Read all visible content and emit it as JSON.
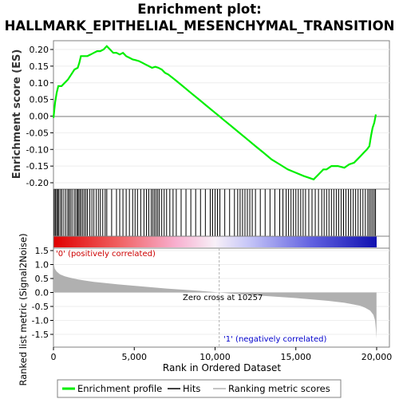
{
  "title_line1": "Enrichment plot:",
  "title_line2": "HALLMARK_EPITHELIAL_MESENCHYMAL_TRANSITION",
  "chart_data": [
    {
      "type": "line",
      "panel": "enrichment",
      "ylabel": "Enrichment score (ES)",
      "xlim": [
        0,
        20000
      ],
      "ylim": [
        -0.2,
        0.2
      ],
      "yticks": [
        "0.20",
        "0.15",
        "0.10",
        "0.05",
        "0.00",
        "-0.05",
        "-0.10",
        "-0.15",
        "-0.20"
      ],
      "ytick_values": [
        0.2,
        0.15,
        0.1,
        0.05,
        0.0,
        -0.05,
        -0.1,
        -0.15,
        -0.2
      ],
      "series": [
        {
          "name": "Enrichment profile",
          "color": "#00ee00",
          "x": [
            0,
            100,
            200,
            300,
            500,
            700,
            900,
            1100,
            1300,
            1500,
            1600,
            1700,
            1900,
            2100,
            2300,
            2500,
            2700,
            2900,
            3100,
            3300,
            3500,
            3700,
            3900,
            4100,
            4300,
            4500,
            4700,
            4900,
            5100,
            5300,
            5500,
            5700,
            5900,
            6100,
            6300,
            6500,
            6700,
            6900,
            7100,
            7500,
            8000,
            8500,
            9000,
            9500,
            10000,
            10257,
            10500,
            11000,
            11500,
            12000,
            12500,
            13000,
            13500,
            14000,
            14500,
            15000,
            15500,
            15800,
            16100,
            16400,
            16700,
            16900,
            17200,
            17600,
            18000,
            18300,
            18600,
            18800,
            19000,
            19200,
            19400,
            19550,
            19650,
            19750,
            19850,
            19950
          ],
          "y": [
            -0.005,
            0.04,
            0.07,
            0.09,
            0.09,
            0.1,
            0.11,
            0.125,
            0.14,
            0.145,
            0.16,
            0.18,
            0.18,
            0.18,
            0.185,
            0.19,
            0.195,
            0.195,
            0.2,
            0.21,
            0.2,
            0.19,
            0.19,
            0.185,
            0.19,
            0.18,
            0.175,
            0.17,
            0.168,
            0.165,
            0.16,
            0.155,
            0.15,
            0.145,
            0.148,
            0.145,
            0.14,
            0.13,
            0.125,
            0.11,
            0.09,
            0.07,
            0.05,
            0.03,
            0.01,
            0.0,
            -0.01,
            -0.03,
            -0.05,
            -0.07,
            -0.09,
            -0.11,
            -0.13,
            -0.145,
            -0.16,
            -0.17,
            -0.18,
            -0.185,
            -0.19,
            -0.175,
            -0.16,
            -0.16,
            -0.15,
            -0.15,
            -0.155,
            -0.145,
            -0.14,
            -0.13,
            -0.12,
            -0.11,
            -0.1,
            -0.09,
            -0.06,
            -0.035,
            -0.02,
            0.005
          ]
        }
      ]
    },
    {
      "type": "area",
      "panel": "ranked_list_metric",
      "ylabel": "Ranked list metric (Signal2Noise)",
      "xlabel": "Rank in Ordered Dataset",
      "xlim": [
        0,
        20000
      ],
      "ylim": [
        -1.75,
        1.5
      ],
      "xticks": [
        "0",
        "5,000",
        "10,000",
        "15,000",
        "20,000"
      ],
      "xtick_values": [
        0,
        5000,
        10000,
        15000,
        20000
      ],
      "yticks": [
        "1.5",
        "1.0",
        "0.5",
        "0.0",
        "-0.5",
        "-1.0",
        "-1.5"
      ],
      "ytick_values": [
        1.5,
        1.0,
        0.5,
        0.0,
        -0.5,
        -1.0,
        -1.5
      ],
      "zero_cross": 10257,
      "series": [
        {
          "name": "Ranking metric scores",
          "color": "#b0b0b0",
          "x": [
            0,
            30,
            80,
            200,
            400,
            700,
            1000,
            1500,
            2000,
            2500,
            3000,
            4000,
            5000,
            6000,
            7000,
            8000,
            9000,
            10257,
            11000,
            12000,
            13000,
            14000,
            15000,
            16000,
            17000,
            18000,
            18500,
            19000,
            19300,
            19600,
            19800,
            19900,
            19950,
            19990
          ],
          "y": [
            1.2,
            1.0,
            0.85,
            0.75,
            0.65,
            0.58,
            0.53,
            0.47,
            0.42,
            0.38,
            0.35,
            0.29,
            0.24,
            0.19,
            0.14,
            0.1,
            0.06,
            0.0,
            -0.04,
            -0.08,
            -0.12,
            -0.16,
            -0.2,
            -0.25,
            -0.3,
            -0.37,
            -0.42,
            -0.48,
            -0.55,
            -0.65,
            -0.8,
            -1.0,
            -1.3,
            -1.65
          ]
        }
      ]
    }
  ],
  "hits_ranks": [
    50,
    120,
    200,
    260,
    330,
    430,
    520,
    640,
    760,
    880,
    960,
    1050,
    1150,
    1280,
    1380,
    1480,
    1530,
    1620,
    1700,
    1800,
    1900,
    2000,
    2100,
    2250,
    2380,
    2500,
    2650,
    2780,
    2900,
    3050,
    3200,
    3300,
    3600,
    3900,
    4100,
    4300,
    4500,
    4700,
    4900,
    5050,
    5200,
    5400,
    5600,
    5750,
    5900,
    6050,
    6150,
    6250,
    6350,
    6450,
    6550,
    6700,
    6850,
    7000,
    7200,
    7400,
    7600,
    7900,
    8200,
    8500,
    8800,
    9100,
    9400,
    9700,
    9850,
    10000,
    10150,
    10300,
    10600,
    10900,
    11200,
    11400,
    11550,
    11700,
    11850,
    12000,
    12150,
    12300,
    12500,
    12800,
    13100,
    13400,
    13700,
    14000,
    14200,
    14400,
    14550,
    14700,
    14850,
    15000,
    15150,
    15300,
    15450,
    15600,
    15800,
    16000,
    16200,
    16400,
    16600,
    16750,
    16900,
    17050,
    17200,
    17350,
    17500,
    17650,
    17800,
    17950,
    18100,
    18250,
    18400,
    18550,
    18700,
    18850,
    19000,
    19150,
    19300,
    19450,
    19550,
    19650,
    19750,
    19850,
    19930
  ],
  "annotations": {
    "pos_label": "'0' (positively correlated)",
    "neg_label": "'1' (negatively correlated)",
    "zero_cross_label": "Zero cross at 10257"
  },
  "colors": {
    "es_line": "#00ee00",
    "pos_label": "#cc0000",
    "neg_label": "#0000cc",
    "metric_fill": "#b0b0b0"
  },
  "legend": {
    "items": [
      {
        "label": "Enrichment profile",
        "color": "#00ee00"
      },
      {
        "label": "Hits",
        "color": "#000000"
      },
      {
        "label": "Ranking metric scores",
        "color": "#b0b0b0"
      }
    ]
  }
}
